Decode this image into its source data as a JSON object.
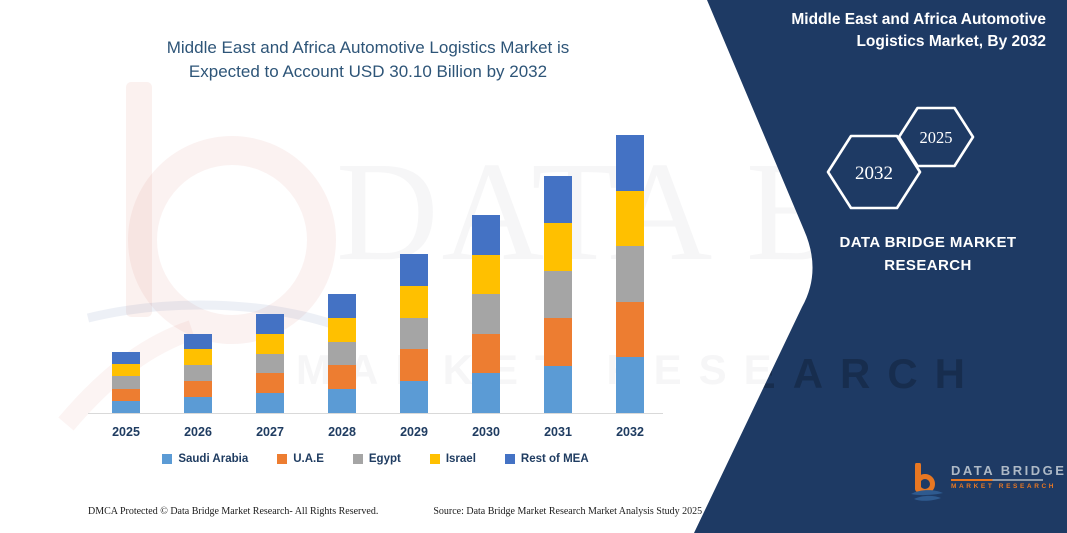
{
  "chart_title": {
    "line1": "Middle East and Africa Automotive Logistics Market is",
    "line2": "Expected to Account USD 30.10 Billion by 2032"
  },
  "chart_data": {
    "type": "bar",
    "stacked": true,
    "title": "Middle East and Africa Automotive Logistics Market is Expected to Account USD 30.10 Billion by 2032",
    "unit": "USD Billion",
    "categories": [
      "2025",
      "2026",
      "2027",
      "2028",
      "2029",
      "2030",
      "2031",
      "2032"
    ],
    "series": [
      {
        "name": "Saudi Arabia",
        "color": "#5B9BD5",
        "values": [
          1.32,
          1.72,
          2.14,
          2.58,
          3.44,
          4.28,
          5.14,
          6.02
        ]
      },
      {
        "name": "U.A.E",
        "color": "#ED7D31",
        "values": [
          1.32,
          1.72,
          2.14,
          2.58,
          3.44,
          4.28,
          5.14,
          6.02
        ]
      },
      {
        "name": "Egypt",
        "color": "#A5A5A5",
        "values": [
          1.32,
          1.72,
          2.14,
          2.58,
          3.44,
          4.28,
          5.14,
          6.02
        ]
      },
      {
        "name": "Israel",
        "color": "#FFC000",
        "values": [
          1.32,
          1.72,
          2.14,
          2.58,
          3.44,
          4.28,
          5.14,
          6.02
        ]
      },
      {
        "name": "Rest of MEA",
        "color": "#4472C4",
        "values": [
          1.32,
          1.72,
          2.14,
          2.58,
          3.44,
          4.28,
          5.14,
          6.02
        ]
      }
    ],
    "totals": [
      6.6,
      8.6,
      10.7,
      12.9,
      17.2,
      21.4,
      25.7,
      30.1
    ],
    "ylim": [
      0,
      32
    ],
    "grid": false,
    "legend_position": "bottom",
    "xlabel": "",
    "ylabel": ""
  },
  "panel": {
    "bg_color": "#1E3A64",
    "title_line1": "Middle East and Africa Automotive",
    "title_line2": "Logistics Market, By 2032",
    "hex_back_label": "2032",
    "hex_front_label": "2025",
    "brand_line1": "DATA BRIDGE MARKET",
    "brand_line2": "RESEARCH",
    "logo_text": "DATA BRIDGE",
    "logo_sub": "MARKET RESEARCH"
  },
  "watermark": {
    "big_text": "DATA BRIDGE",
    "row_text": "MARKET RESEARCH"
  },
  "footer": {
    "left": "DMCA Protected © Data Bridge Market Research-  All Rights Reserved.",
    "right": "Source: Data Bridge Market Research  Market Analysis Study 2025"
  }
}
